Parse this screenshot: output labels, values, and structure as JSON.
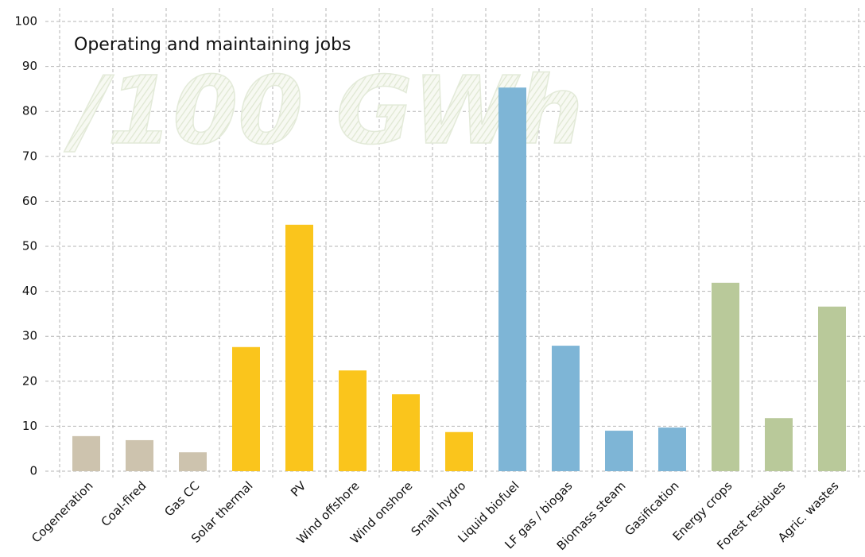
{
  "chart_data": {
    "type": "bar",
    "title": "Operating and maintaining jobs",
    "subtitle": "/100 GWh",
    "categories": [
      "Cogeneration",
      "Coal-fired",
      "Gas CC",
      "Solar thermal",
      "PV",
      "Wind offshore",
      "Wind onshore",
      "Small hydro",
      "Liquid biofuel",
      "LF gas / biogas",
      "Biomass steam",
      "Gasification",
      "Energy crops",
      "Forest residues",
      "Agric. wastes"
    ],
    "values": [
      7.8,
      6.9,
      4.2,
      27.6,
      54.8,
      22.4,
      17.1,
      8.7,
      85.3,
      27.9,
      9.0,
      9.7,
      41.9,
      11.8,
      36.6
    ],
    "colors": [
      "#cdc3ae",
      "#cdc3ae",
      "#cdc3ae",
      "#fac51c",
      "#fac51c",
      "#fac51c",
      "#fac51c",
      "#fac51c",
      "#7eb5d6",
      "#7eb5d6",
      "#7eb5d6",
      "#7eb5d6",
      "#b9c99a",
      "#b9c99a",
      "#b9c99a"
    ],
    "ylim": [
      0,
      100
    ],
    "yticks": [
      0,
      10,
      20,
      30,
      40,
      50,
      60,
      70,
      80,
      90,
      100
    ],
    "grid": true
  }
}
